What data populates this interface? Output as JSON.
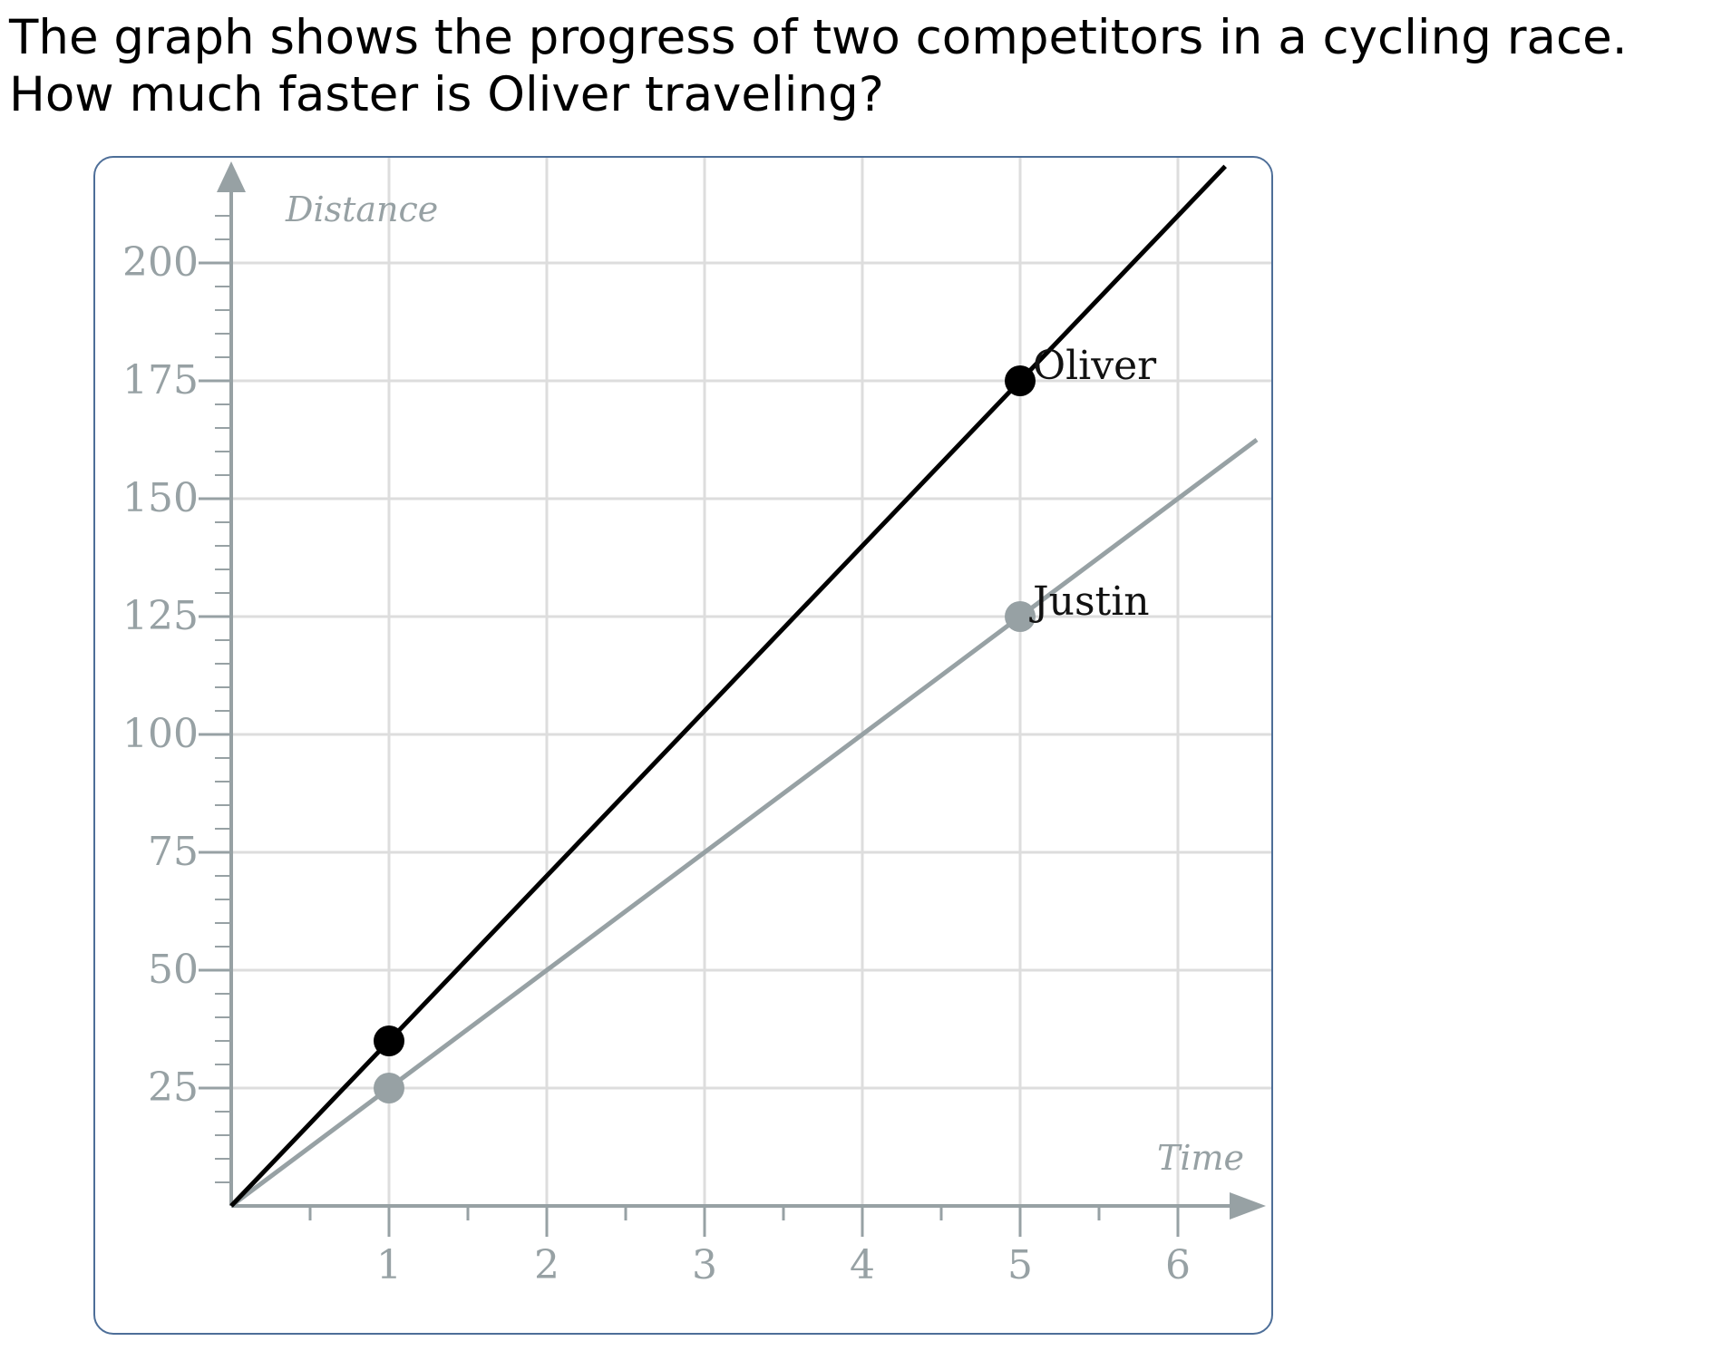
{
  "question": {
    "line1": "The graph shows the progress of two competitors in a cycling race.",
    "line2": "How much faster is Oliver traveling?"
  },
  "colors": {
    "oliver": "#000000",
    "justin": "#97a1a4",
    "axis": "#97a1a4",
    "grid": "#dddddd",
    "frame": "#4d6e98"
  },
  "chart_data": {
    "type": "line",
    "title": "",
    "xlabel": "Time",
    "ylabel": "Distance",
    "xlim": [
      0,
      6.5
    ],
    "ylim": [
      0,
      220
    ],
    "grid": true,
    "x_ticks": [
      1,
      2,
      3,
      4,
      5,
      6
    ],
    "x_tick_labels": [
      "1",
      "2",
      "3",
      "4",
      "5",
      "6"
    ],
    "y_ticks": [
      25,
      50,
      75,
      100,
      125,
      150,
      175,
      200
    ],
    "y_tick_labels": [
      "25",
      "50",
      "75",
      "100",
      "125",
      "150",
      "175",
      "200"
    ],
    "series": [
      {
        "name": "Oliver",
        "color": "#000000",
        "line": [
          [
            0,
            0
          ],
          [
            6.3,
            220.5
          ]
        ],
        "points": [
          [
            1,
            35
          ],
          [
            5,
            175
          ]
        ],
        "label_at_x": 5
      },
      {
        "name": "Justin",
        "color": "#97a1a4",
        "line": [
          [
            0,
            0
          ],
          [
            6.5,
            162.5
          ]
        ],
        "points": [
          [
            1,
            25
          ],
          [
            5,
            125
          ]
        ],
        "label_at_x": 5
      }
    ]
  }
}
